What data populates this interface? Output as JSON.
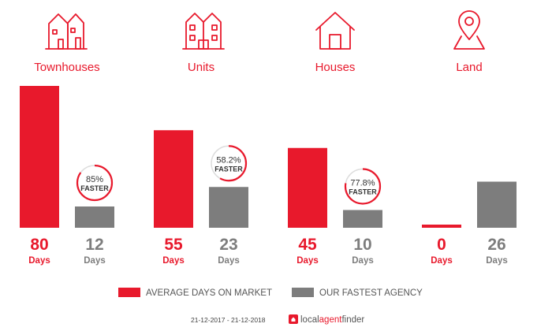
{
  "chart_data": {
    "type": "bar",
    "categories": [
      "Townhouses",
      "Units",
      "Houses",
      "Land"
    ],
    "series": [
      {
        "name": "AVERAGE DAYS ON MARKET",
        "values": [
          80,
          55,
          45,
          0
        ],
        "color": "#e8192c"
      },
      {
        "name": "OUR FASTEST AGENCY",
        "values": [
          12,
          23,
          10,
          26
        ],
        "color": "#7d7d7d"
      }
    ],
    "value_unit": "Days",
    "faster_badges": [
      {
        "category": "Townhouses",
        "pct": "85%",
        "label": "FASTER"
      },
      {
        "category": "Units",
        "pct": "58.2%",
        "label": "FASTER"
      },
      {
        "category": "Houses",
        "pct": "77.8%",
        "label": "FASTER"
      },
      null
    ],
    "icons": [
      "townhouse-icon",
      "units-icon",
      "house-icon",
      "land-pin-icon"
    ],
    "ylim": [
      0,
      80
    ],
    "legend_position": "bottom-center"
  },
  "footer": {
    "date_range": "21-12-2017 - 21-12-2018",
    "brand_part1": "local",
    "brand_part2": "agent",
    "brand_part3": "finder"
  },
  "colors": {
    "accent": "#e8192c",
    "secondary": "#7d7d7d"
  }
}
